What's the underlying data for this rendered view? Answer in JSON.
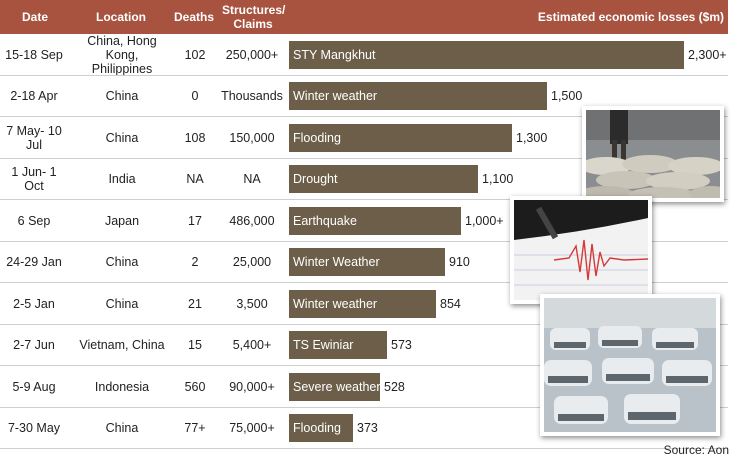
{
  "chart_data": {
    "type": "table",
    "columns": [
      "Date",
      "Location",
      "Deaths",
      "Structures/ Claims",
      "Estimated economic losses ($m)"
    ],
    "rows": [
      {
        "date": "15-18 Sep",
        "location": "China, Hong Kong, Philippines",
        "deaths": "102",
        "claims": "250,000+",
        "event": "STY Mangkhut",
        "loss": 2300,
        "loss_label": "2,300+"
      },
      {
        "date": "2-18 Apr",
        "location": "China",
        "deaths": "0",
        "claims": "Thousands",
        "event": "Winter weather",
        "loss": 1500,
        "loss_label": "1,500"
      },
      {
        "date": "7 May- 10 Jul",
        "location": "China",
        "deaths": "108",
        "claims": "150,000",
        "event": "Flooding",
        "loss": 1300,
        "loss_label": "1,300"
      },
      {
        "date": "1 Jun- 1 Oct",
        "location": "India",
        "deaths": "NA",
        "claims": "NA",
        "event": "Drought",
        "loss": 1100,
        "loss_label": "1,100"
      },
      {
        "date": "6 Sep",
        "location": "Japan",
        "deaths": "17",
        "claims": "486,000",
        "event": "Earthquake",
        "loss": 1000,
        "loss_label": "1,000+"
      },
      {
        "date": "24-29 Jan",
        "location": "China",
        "deaths": "2",
        "claims": "25,000",
        "event": "Winter Weather",
        "loss": 910,
        "loss_label": "910"
      },
      {
        "date": "2-5 Jan",
        "location": "China",
        "deaths": "21",
        "claims": "3,500",
        "event": "Winter weather",
        "loss": 854,
        "loss_label": "854"
      },
      {
        "date": "2-7 Jun",
        "location": "Vietnam, China",
        "deaths": "15",
        "claims": "5,400+",
        "event": "TS Ewiniar",
        "loss": 573,
        "loss_label": "573"
      },
      {
        "date": "5-9 Aug",
        "location": "Indonesia",
        "deaths": "560",
        "claims": "90,000+",
        "event": "Severe weather",
        "loss": 528,
        "loss_label": "528"
      },
      {
        "date": "7-30 May",
        "location": "China",
        "deaths": "77+",
        "claims": "75,000+",
        "event": "Flooding",
        "loss": 373,
        "loss_label": "373"
      }
    ],
    "xlim": [
      0,
      2300
    ],
    "source": "Source: Aon"
  },
  "colors": {
    "header": "#a7533f",
    "bar": "#6c5e49",
    "separator": "#cfcfcf"
  }
}
